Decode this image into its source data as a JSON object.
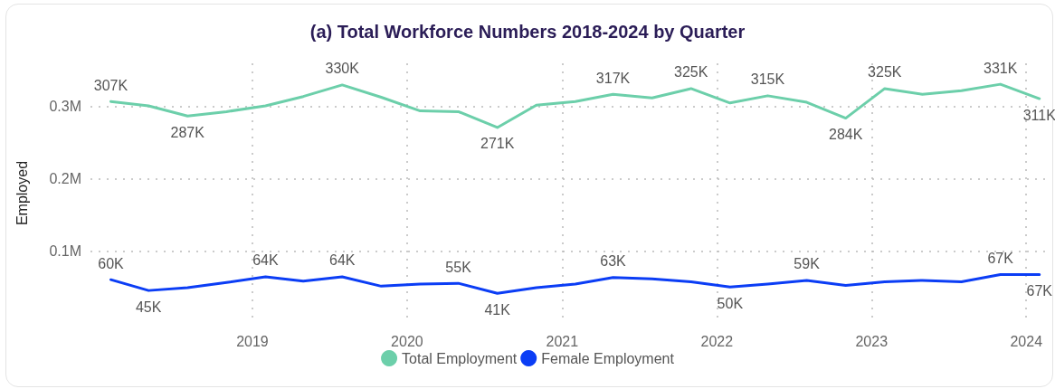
{
  "chart_data": {
    "type": "line",
    "title": "(a) Total Workforce Numbers 2018-2024 by Quarter",
    "ylabel": "Employed",
    "x": [
      "2018-02",
      "2018-05",
      "2018-08",
      "2018-11",
      "2019-02",
      "2019-05",
      "2019-08",
      "2019-11",
      "2020-02",
      "2020-05",
      "2020-08",
      "2020-11",
      "2021-02",
      "2021-05",
      "2021-08",
      "2021-11",
      "2022-02",
      "2022-05",
      "2022-08",
      "2022-11",
      "2023-02",
      "2023-05",
      "2023-08",
      "2023-11",
      "2024-02"
    ],
    "series": [
      {
        "name": "Total Employment",
        "color": "#6ccfaa",
        "values": [
          307000,
          301000,
          287000,
          293000,
          301000,
          314000,
          330000,
          313000,
          294000,
          293000,
          271000,
          302000,
          307000,
          317000,
          312000,
          325000,
          305000,
          315000,
          306000,
          284000,
          325000,
          317000,
          322000,
          331000,
          311000
        ],
        "value_labels": [
          "307K",
          null,
          "287K",
          null,
          null,
          null,
          "330K",
          null,
          null,
          null,
          "271K",
          null,
          null,
          "317K",
          null,
          "325K",
          null,
          "315K",
          null,
          "284K",
          "325K",
          null,
          null,
          "331K",
          "311K"
        ]
      },
      {
        "name": "Female Employment",
        "color": "#0b3df5",
        "values": [
          60000,
          45000,
          49000,
          56000,
          64000,
          58000,
          64000,
          51000,
          54000,
          55000,
          41000,
          49000,
          54000,
          63000,
          61000,
          57000,
          50000,
          54000,
          59000,
          52000,
          57000,
          59000,
          57000,
          67000,
          67000
        ],
        "value_labels": [
          "60K",
          "45K",
          null,
          null,
          "64K",
          null,
          "64K",
          null,
          null,
          "55K",
          "41K",
          null,
          null,
          "63K",
          null,
          null,
          "50K",
          null,
          "59K",
          null,
          null,
          null,
          null,
          "67K",
          "67K"
        ]
      }
    ],
    "xlim": [
      "2017-12-15",
      "2024-02-25"
    ],
    "xticks": [
      "2019",
      "2020",
      "2021",
      "2022",
      "2023",
      "2024"
    ],
    "ylim": [
      0,
      360000
    ],
    "yticks": [
      {
        "value": 100000,
        "label": "0.1M"
      },
      {
        "value": 200000,
        "label": "0.2M"
      },
      {
        "value": 300000,
        "label": "0.3M"
      }
    ],
    "grid": true,
    "legend": "bottom",
    "marker": "none",
    "line_style": "solid"
  }
}
